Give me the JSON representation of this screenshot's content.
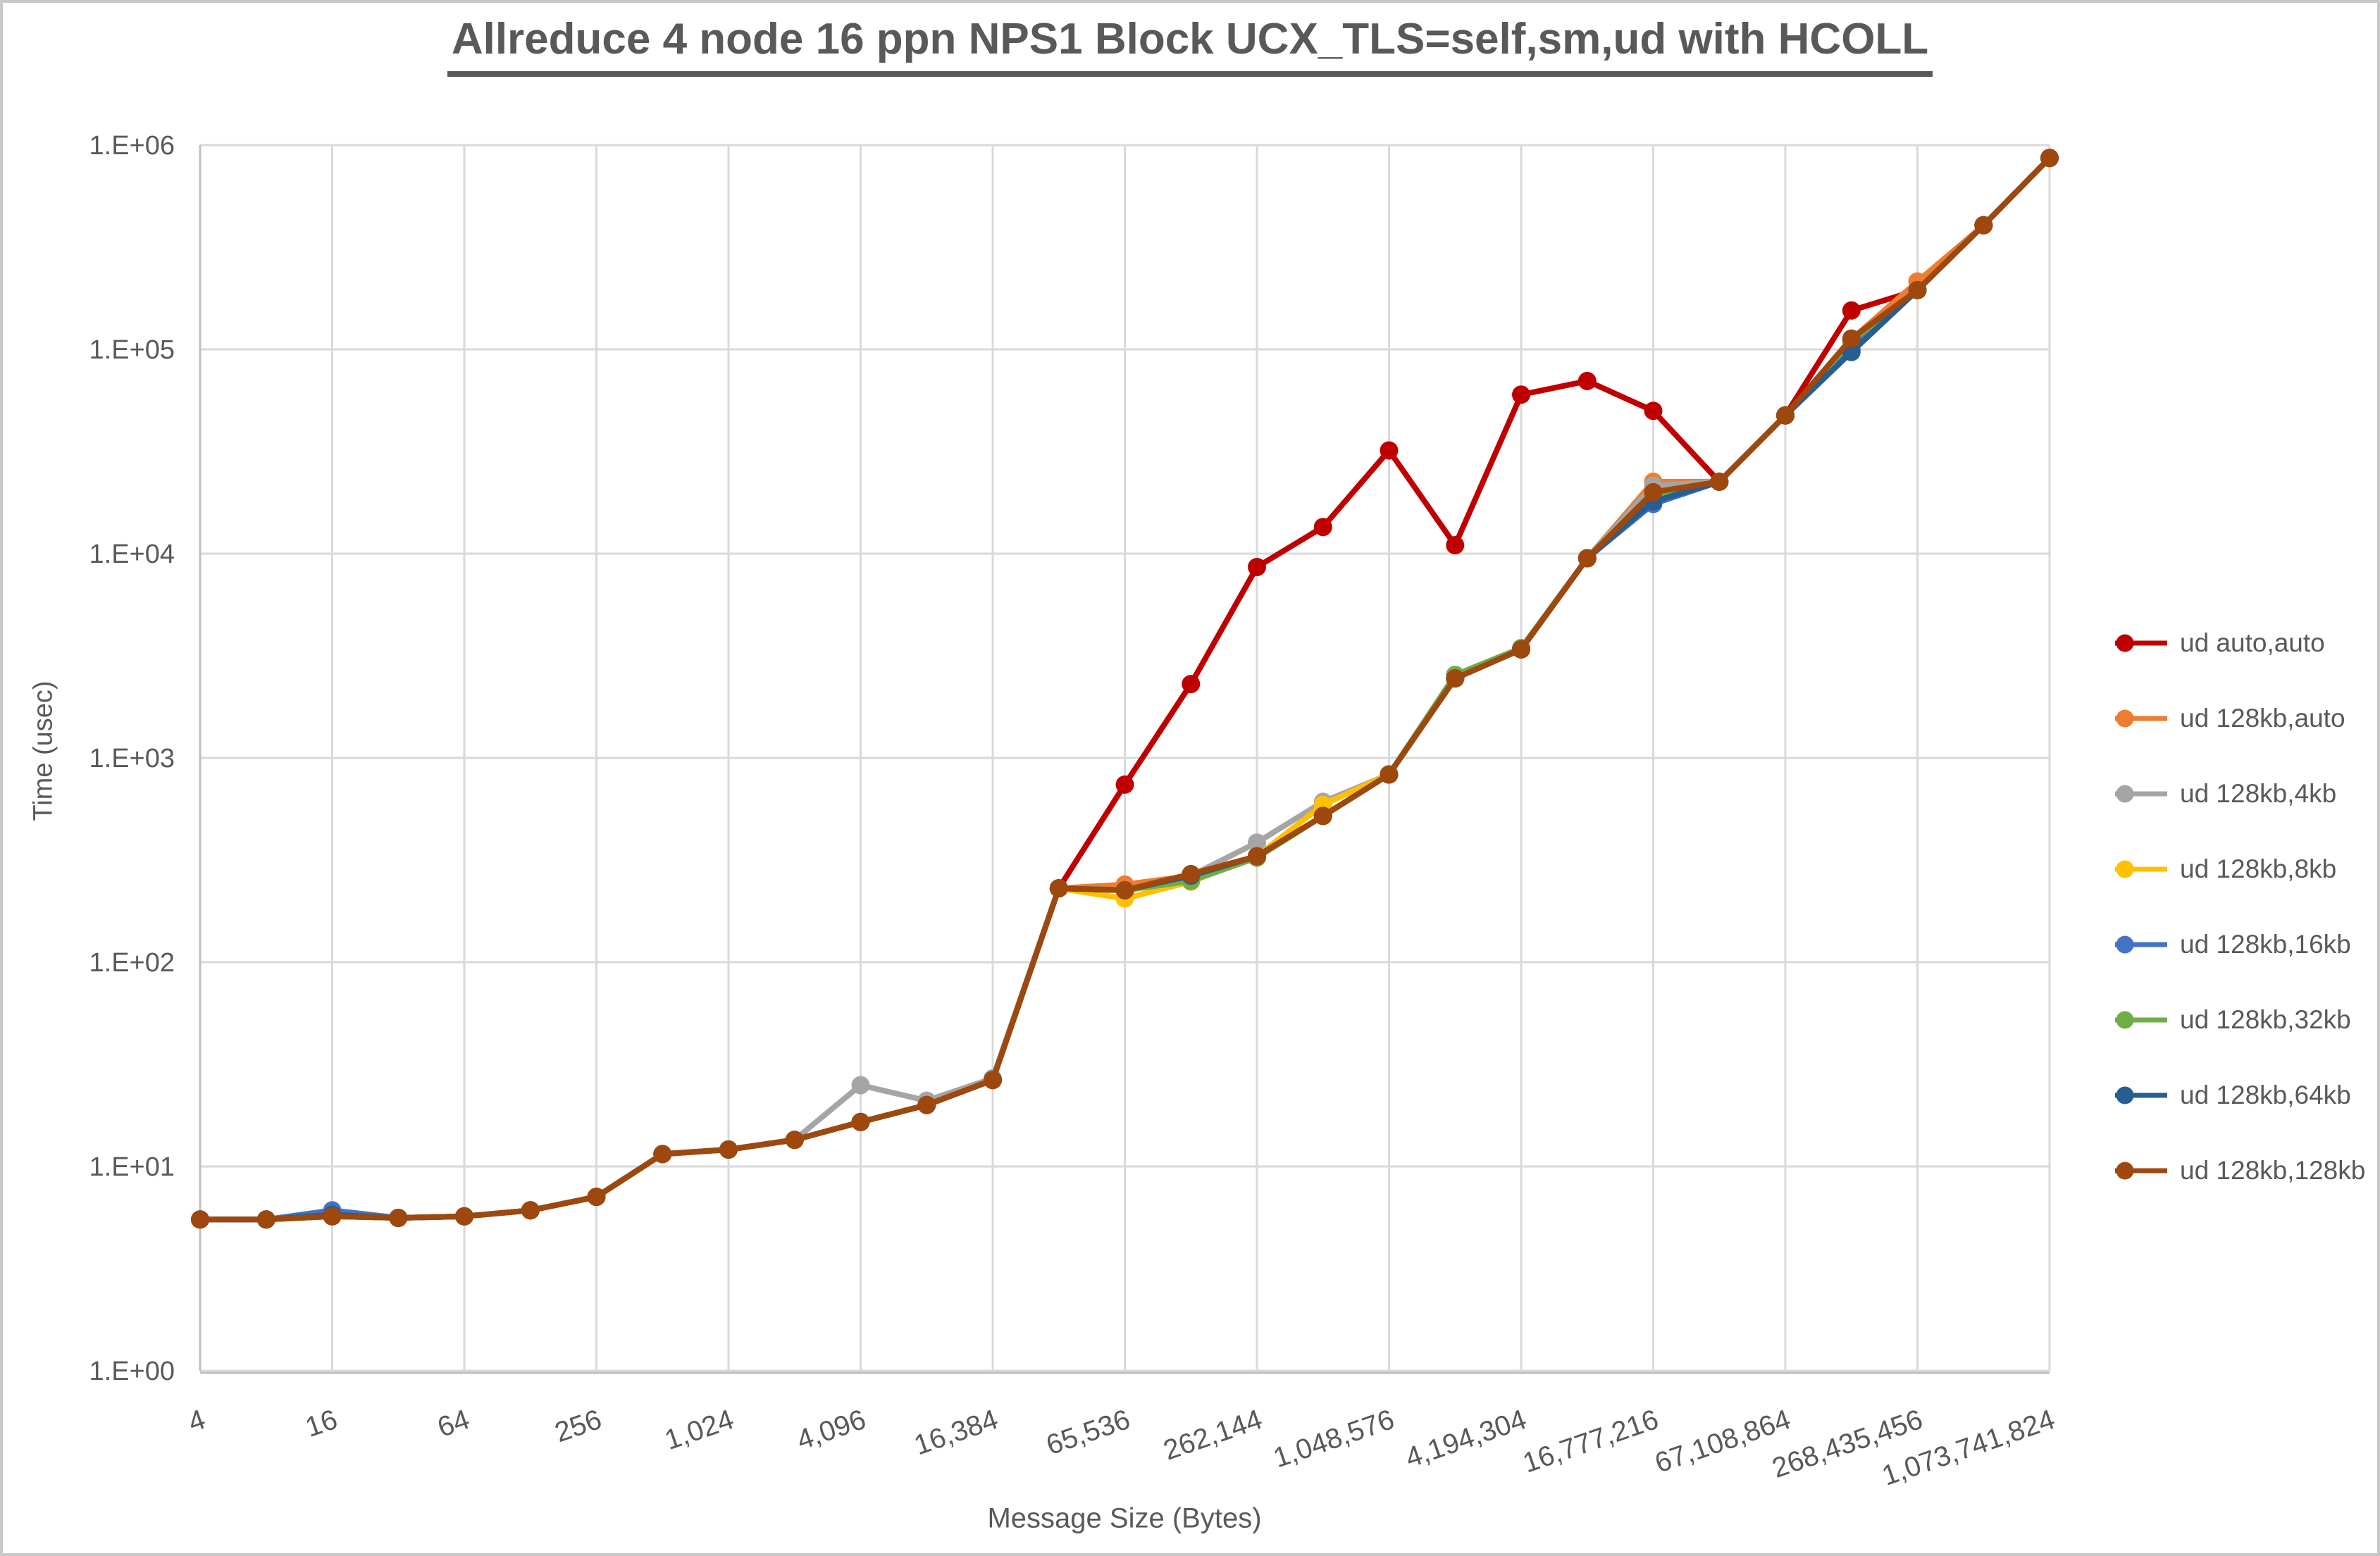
{
  "chart_data": {
    "type": "line",
    "title": "Allreduce 4 node 16 ppn NPS1 Block UCX_TLS=self,sm,ud with HCOLL",
    "xlabel": "Message Size (Bytes)",
    "ylabel": "Time (usec)",
    "x_scale": "log2",
    "y_scale": "log10",
    "ylim": [
      1,
      1000000
    ],
    "grid": true,
    "legend_position": "right",
    "y_tick_labels": [
      "1.E+00",
      "1.E+01",
      "1.E+02",
      "1.E+03",
      "1.E+04",
      "1.E+05",
      "1.E+06"
    ],
    "x_tick_labels": [
      "4",
      "16",
      "64",
      "256",
      "1,024",
      "4,096",
      "16,384",
      "65,536",
      "262,144",
      "1,048,576",
      "4,194,304",
      "16,777,216",
      "67,108,864",
      "268,435,456",
      "1,073,741,824"
    ],
    "x": [
      4,
      8,
      16,
      32,
      64,
      128,
      256,
      512,
      1024,
      2048,
      4096,
      8192,
      16384,
      32768,
      65536,
      131072,
      262144,
      524288,
      1048576,
      2097152,
      4194304,
      8388608,
      16777216,
      33554432,
      67108864,
      134217728,
      268435456,
      536870912,
      1073741824
    ],
    "colors": {
      "grid": "#d9d9d9",
      "axis": "#bfbfbf",
      "text": "#595959"
    },
    "series": [
      {
        "name": "ud auto,auto",
        "color": "#C00000",
        "values": [
          5.5,
          5.5,
          5.7,
          5.6,
          5.7,
          6.1,
          7.1,
          11.5,
          12.1,
          13.5,
          16.5,
          20,
          26.5,
          230,
          740,
          2300,
          8600,
          13500,
          32000,
          11000,
          60000,
          70000,
          50000,
          22500,
          47500,
          155000,
          195000,
          405000,
          865000
        ]
      },
      {
        "name": "ud 128kb,auto",
        "color": "#ED7D31",
        "values": [
          5.5,
          5.5,
          5.7,
          5.6,
          5.7,
          6.1,
          7.1,
          11.5,
          12.1,
          13.5,
          16.5,
          20,
          26.5,
          230,
          240,
          265,
          330,
          520,
          830,
          2450,
          3400,
          9500,
          22500,
          22500,
          47500,
          112000,
          215000,
          405000,
          865000
        ]
      },
      {
        "name": "ud 128kb,4kb",
        "color": "#A5A5A5",
        "values": [
          5.5,
          5.5,
          5.7,
          5.6,
          5.7,
          6.1,
          7.1,
          11.5,
          12.1,
          13.5,
          25,
          21,
          27,
          230,
          225,
          265,
          385,
          610,
          830,
          2450,
          3400,
          9500,
          21500,
          22500,
          47500,
          110000,
          195000,
          405000,
          865000
        ]
      },
      {
        "name": "ud 128kb,8kb",
        "color": "#FFC000",
        "values": [
          5.5,
          5.5,
          5.7,
          5.6,
          5.7,
          6.1,
          7.1,
          11.5,
          12.1,
          13.5,
          16.5,
          20,
          26.5,
          230,
          205,
          248,
          330,
          590,
          830,
          2450,
          3400,
          9500,
          20000,
          22500,
          47500,
          110000,
          195000,
          405000,
          865000
        ]
      },
      {
        "name": "ud 128kb,16kb",
        "color": "#4472C4",
        "values": [
          5.5,
          5.5,
          6.1,
          5.6,
          5.7,
          6.1,
          7.1,
          11.5,
          12.1,
          13.5,
          16.5,
          20,
          26.5,
          230,
          225,
          265,
          330,
          520,
          830,
          2450,
          3400,
          9500,
          17500,
          22500,
          47500,
          100000,
          195000,
          405000,
          865000
        ]
      },
      {
        "name": "ud 128kb,32kb",
        "color": "#70AD47",
        "values": [
          5.5,
          5.5,
          5.7,
          5.6,
          5.7,
          6.1,
          7.1,
          11.5,
          12.1,
          13.5,
          16.5,
          20,
          26.5,
          230,
          225,
          250,
          325,
          520,
          830,
          2550,
          3450,
          9500,
          19000,
          22500,
          47500,
          110000,
          195000,
          405000,
          865000
        ]
      },
      {
        "name": "ud 128kb,64kb",
        "color": "#255E91",
        "values": [
          5.5,
          5.5,
          5.8,
          5.6,
          5.7,
          6.1,
          7.1,
          11.5,
          12.1,
          13.5,
          16.5,
          20,
          26.5,
          230,
          225,
          265,
          330,
          520,
          830,
          2450,
          3400,
          9500,
          18000,
          22500,
          47500,
          97000,
          195000,
          405000,
          865000
        ]
      },
      {
        "name": "ud 128kb,128kb",
        "color": "#9E480E",
        "values": [
          5.5,
          5.5,
          5.7,
          5.6,
          5.7,
          6.1,
          7.1,
          11.5,
          12.1,
          13.5,
          16.5,
          20,
          26.5,
          230,
          225,
          270,
          330,
          520,
          830,
          2450,
          3400,
          9500,
          20000,
          22500,
          47500,
          113000,
          195000,
          405000,
          865000
        ]
      }
    ]
  }
}
